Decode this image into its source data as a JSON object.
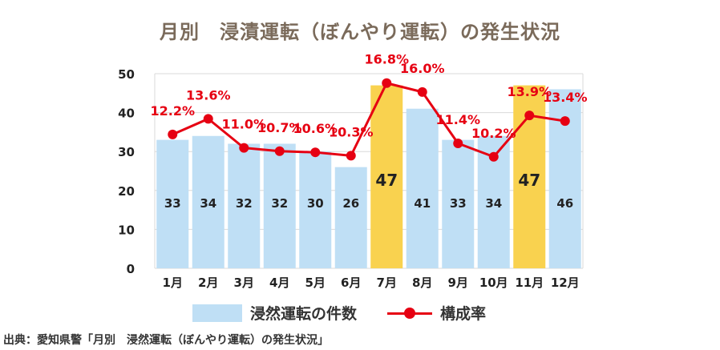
{
  "chart_data": {
    "type": "bar",
    "title": "月別　浸漬運転（ぼんやり運転）の発生状況",
    "categories": [
      "1月",
      "2月",
      "3月",
      "4月",
      "5月",
      "6月",
      "7月",
      "8月",
      "9月",
      "10月",
      "11月",
      "12月"
    ],
    "series": [
      {
        "name": "浸然運転の件数",
        "type": "bar",
        "values": [
          33,
          34,
          32,
          32,
          30,
          26,
          47,
          41,
          33,
          34,
          47,
          46
        ],
        "value_labels": [
          "33",
          "34",
          "32",
          "32",
          "30",
          "26",
          "47",
          "41",
          "33",
          "34",
          "47",
          "46"
        ],
        "color": "#bfdff5",
        "highlight_color": "#f9d24f",
        "highlight_indices": [
          6,
          10
        ]
      },
      {
        "name": "構成率",
        "type": "line",
        "values": [
          12.2,
          13.6,
          11.0,
          10.7,
          10.6,
          10.3,
          16.8,
          16.0,
          11.4,
          10.2,
          13.9,
          13.4
        ],
        "value_labels": [
          "12.2%",
          "13.6%",
          "11.0%",
          "10.7%",
          "10.6%",
          "10.3%",
          "16.8%",
          "16.0%",
          "11.4%",
          "10.2%",
          "13.9%",
          "13.4%"
        ],
        "color": "#e60012"
      }
    ],
    "y_ticks": [
      "0",
      "10",
      "20",
      "30",
      "40",
      "50"
    ],
    "ylim": [
      0,
      50
    ],
    "grid": true,
    "legend_position": "bottom",
    "source_note": "出典：愛知県警「月別　浸然運転（ぼんやり運転）の発生状況」"
  }
}
